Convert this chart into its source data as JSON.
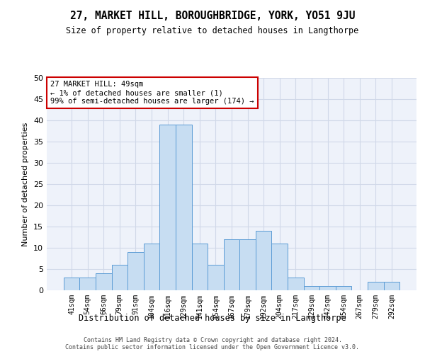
{
  "title1": "27, MARKET HILL, BOROUGHBRIDGE, YORK, YO51 9JU",
  "title2": "Size of property relative to detached houses in Langthorpe",
  "xlabel": "Distribution of detached houses by size in Langthorpe",
  "ylabel": "Number of detached properties",
  "categories": [
    "41sqm",
    "54sqm",
    "66sqm",
    "79sqm",
    "91sqm",
    "104sqm",
    "116sqm",
    "129sqm",
    "141sqm",
    "154sqm",
    "167sqm",
    "179sqm",
    "192sqm",
    "204sqm",
    "217sqm",
    "229sqm",
    "242sqm",
    "254sqm",
    "267sqm",
    "279sqm",
    "292sqm"
  ],
  "values": [
    3,
    3,
    4,
    6,
    9,
    11,
    39,
    39,
    11,
    6,
    12,
    12,
    14,
    11,
    3,
    1,
    1,
    1,
    0,
    2,
    2
  ],
  "bar_color": "#c7ddf2",
  "bar_edge_color": "#5b9bd5",
  "annotation_text_line1": "27 MARKET HILL: 49sqm",
  "annotation_text_line2": "← 1% of detached houses are smaller (1)",
  "annotation_text_line3": "99% of semi-detached houses are larger (174) →",
  "annotation_box_color": "#cc0000",
  "ylim": [
    0,
    50
  ],
  "yticks": [
    0,
    5,
    10,
    15,
    20,
    25,
    30,
    35,
    40,
    45,
    50
  ],
  "grid_color": "#d0d8e8",
  "bg_color": "#eef2fa",
  "footer": "Contains HM Land Registry data © Crown copyright and database right 2024.\nContains public sector information licensed under the Open Government Licence v3.0."
}
